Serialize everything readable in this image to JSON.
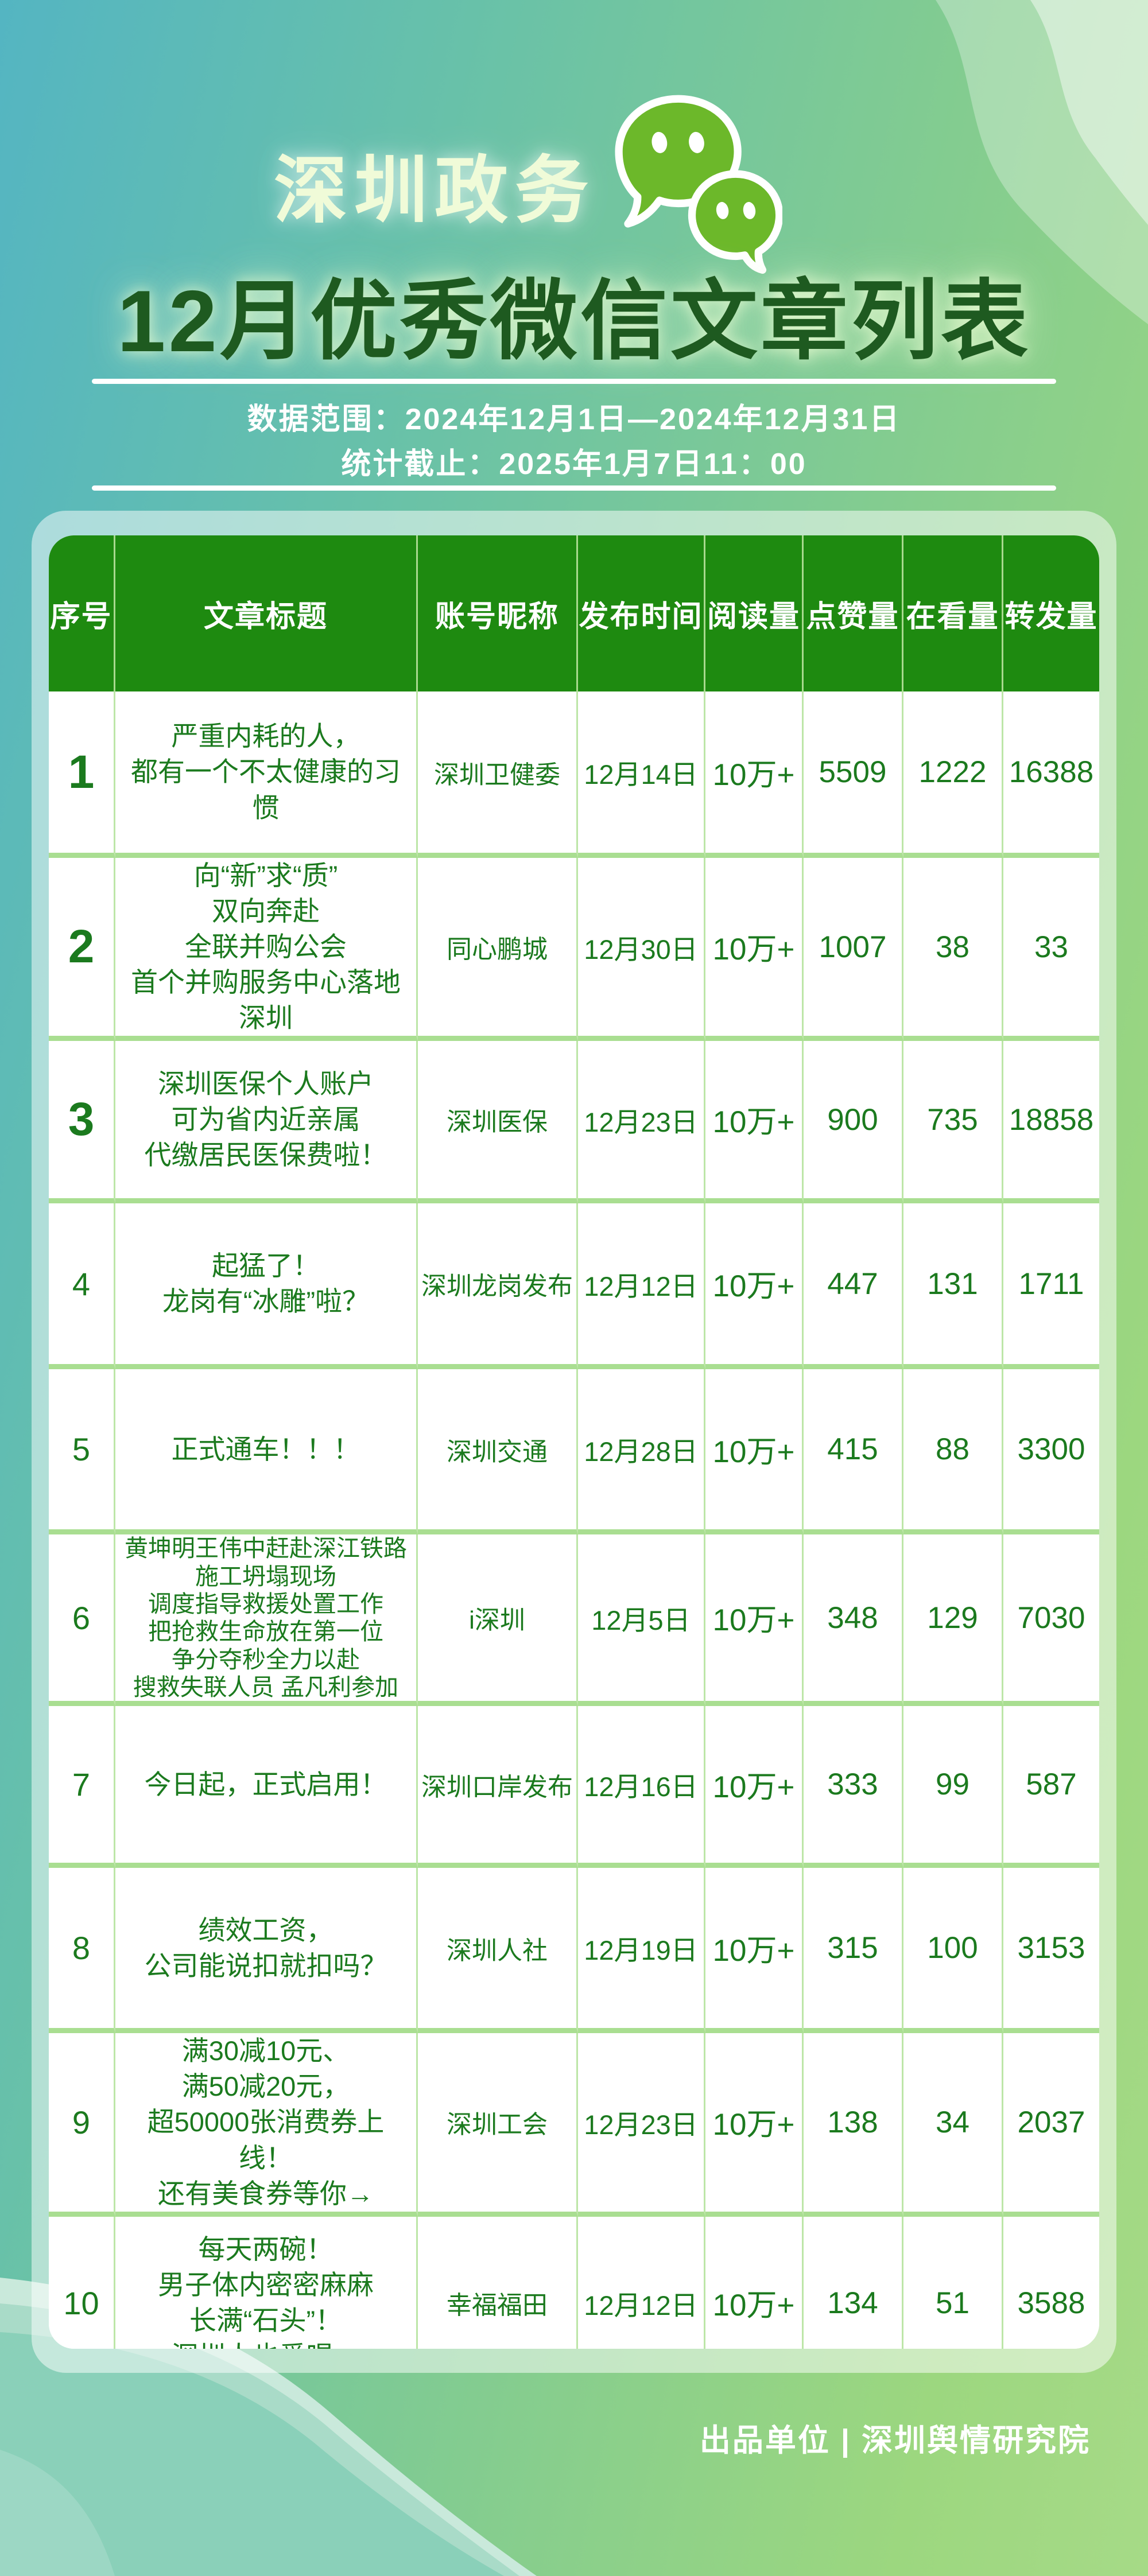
{
  "header": {
    "brand": "深圳政务",
    "title": "12月优秀微信文章列表"
  },
  "meta": {
    "range_label": "数据范围：2024年12月1日—2024年12月31日",
    "deadline_label": "统计截止：2025年1月7日11：00"
  },
  "table": {
    "columns": [
      "序号",
      "文章标题",
      "账号昵称",
      "发布时间",
      "阅读量",
      "点赞量",
      "在看量",
      "转发量"
    ],
    "rows": [
      {
        "no": "1",
        "title": [
          "严重内耗的人，",
          "都有一个不太健康的习惯"
        ],
        "account": "深圳卫健委",
        "date": "12月14日",
        "reads": "10万+",
        "likes": "5509",
        "watching": "1222",
        "shares": "16388"
      },
      {
        "no": "2",
        "title": [
          "向“新”求“质”",
          "双向奔赴",
          "全联并购公会",
          "首个并购服务中心落地深圳"
        ],
        "account": "同心鹏城",
        "date": "12月30日",
        "reads": "10万+",
        "likes": "1007",
        "watching": "38",
        "shares": "33"
      },
      {
        "no": "3",
        "title": [
          "深圳医保个人账户",
          "可为省内近亲属",
          "代缴居民医保费啦！"
        ],
        "account": "深圳医保",
        "date": "12月23日",
        "reads": "10万+",
        "likes": "900",
        "watching": "735",
        "shares": "18858"
      },
      {
        "no": "4",
        "title": [
          "起猛了！",
          "龙岗有“冰雕”啦？"
        ],
        "account": "深圳龙岗发布",
        "date": "12月12日",
        "reads": "10万+",
        "likes": "447",
        "watching": "131",
        "shares": "1711"
      },
      {
        "no": "5",
        "title": [
          "正式通车！！！"
        ],
        "account": "深圳交通",
        "date": "12月28日",
        "reads": "10万+",
        "likes": "415",
        "watching": "88",
        "shares": "3300"
      },
      {
        "no": "6",
        "title": [
          "黄坤明王伟中赶赴深江铁路",
          "施工坍塌现场",
          "调度指导救援处置工作",
          "把抢救生命放在第一位",
          "争分夺秒全力以赴",
          "搜救失联人员 孟凡利参加"
        ],
        "account": "i深圳",
        "date": "12月5日",
        "reads": "10万+",
        "likes": "348",
        "watching": "129",
        "shares": "7030"
      },
      {
        "no": "7",
        "title": [
          "今日起，正式启用！"
        ],
        "account": "深圳口岸发布",
        "date": "12月16日",
        "reads": "10万+",
        "likes": "333",
        "watching": "99",
        "shares": "587"
      },
      {
        "no": "8",
        "title": [
          "绩效工资，",
          "公司能说扣就扣吗？"
        ],
        "account": "深圳人社",
        "date": "12月19日",
        "reads": "10万+",
        "likes": "315",
        "watching": "100",
        "shares": "3153"
      },
      {
        "no": "9",
        "title": [
          "满30减10元、",
          "满50减20元，",
          "超50000张消费券上线！",
          "还有美食券等你→"
        ],
        "account": "深圳工会",
        "date": "12月23日",
        "reads": "10万+",
        "likes": "138",
        "watching": "34",
        "shares": "2037"
      },
      {
        "no": "10",
        "title": [
          "每天两碗！",
          "男子体内密密麻麻",
          "长满“石头”！",
          "深圳人也爱喝→"
        ],
        "account": "幸福福田",
        "date": "12月12日",
        "reads": "10万+",
        "likes": "134",
        "watching": "51",
        "shares": "3588"
      }
    ]
  },
  "footer": {
    "credit": "出品单位 | 深圳舆情研究院"
  },
  "colors": {
    "header_green": "#1e8a10",
    "cell_text_green": "#1b7a1e",
    "grid_vertical": "#bde6a8",
    "grid_horizontal": "#a9de91",
    "title_dark_green": "#1e5a20",
    "brand_pale_green": "#f0fbd8",
    "wechat_icon_green": "#6cb82a",
    "bg_teal": "#54b5c2",
    "bg_green": "#a6da87"
  }
}
